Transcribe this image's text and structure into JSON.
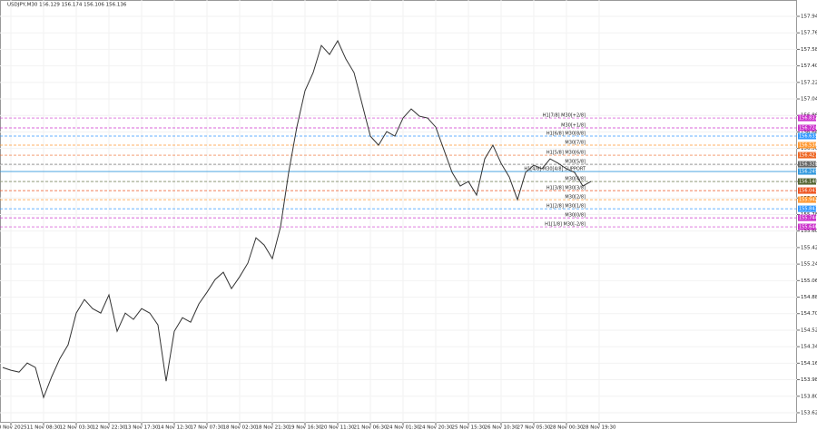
{
  "chart_data": {
    "type": "line",
    "title": "USDJPY,M30 156.129 156.174 156.106 156.136",
    "categories": [
      null,
      "10 Nov 2025",
      null,
      null,
      null,
      "11 Nov 08:30",
      null,
      null,
      null,
      "12 Nov 03:30",
      null,
      null,
      null,
      "12 Nov 22:30",
      null,
      null,
      null,
      "13 Nov 17:30",
      null,
      null,
      null,
      "14 Nov 12:30",
      null,
      null,
      null,
      "17 Nov 07:30",
      null,
      null,
      null,
      "18 Nov 02:30",
      null,
      null,
      null,
      "18 Nov 21:30",
      null,
      null,
      null,
      "19 Nov 16:30",
      null,
      null,
      null,
      "20 Nov 11:30",
      null,
      null,
      null,
      "21 Nov 06:30",
      null,
      null,
      null,
      "24 Nov 01:30",
      null,
      null,
      null,
      "24 Nov 20:30",
      null,
      null,
      null,
      "25 Nov 15:30",
      null,
      null,
      null,
      "26 Nov 10:30",
      null,
      null,
      null,
      "27 Nov 05:30",
      null,
      null,
      null,
      "28 Nov 00:30",
      null,
      null,
      null,
      "28 Nov 19:30"
    ],
    "series": [
      {
        "name": "USDJPY,M30",
        "color": "#333333",
        "values": [
          154.113,
          154.083,
          154.063,
          154.162,
          154.113,
          153.786,
          154.014,
          154.211,
          154.36,
          154.706,
          154.854,
          154.755,
          154.706,
          154.904,
          154.508,
          154.706,
          154.637,
          154.755,
          154.706,
          154.577,
          153.964,
          154.508,
          154.656,
          154.607,
          154.805,
          154.933,
          155.072,
          155.151,
          154.973,
          155.102,
          155.25,
          155.527,
          155.448,
          155.299,
          155.645,
          156.239,
          156.733,
          157.129,
          157.327,
          157.623,
          157.525,
          157.673,
          157.475,
          157.327,
          156.981,
          156.634,
          156.536,
          156.684,
          156.634,
          156.832,
          156.931,
          156.852,
          156.832,
          156.733,
          156.486,
          156.239,
          156.091,
          156.14,
          155.992,
          156.387,
          156.536,
          156.338,
          156.189,
          155.942,
          156.239,
          156.318,
          156.278,
          156.387,
          156.338,
          156.278,
          156.239,
          156.091,
          156.14,
          null
        ]
      }
    ],
    "ylim": [
      153.511,
      158.118
    ],
    "yticks": [
      {
        "value": 157.94,
        "label": "157.940"
      },
      {
        "value": 157.76,
        "label": "157.760"
      },
      {
        "value": 157.58,
        "label": "157.580"
      },
      {
        "value": 157.4,
        "label": "157.400"
      },
      {
        "value": 157.22,
        "label": "157.220"
      },
      {
        "value": 157.04,
        "label": "157.040"
      },
      {
        "value": 156.86,
        "label": "156.860"
      },
      {
        "value": 156.68,
        "label": "156.680"
      },
      {
        "value": 156.5,
        "label": "156.500"
      },
      {
        "value": 156.32,
        "label": "156.320"
      },
      {
        "value": 156.14,
        "label": "156.140"
      },
      {
        "value": 155.96,
        "label": "155.960"
      },
      {
        "value": 155.78,
        "label": "155.780"
      },
      {
        "value": 155.6,
        "label": "155.600"
      },
      {
        "value": 155.42,
        "label": "155.420"
      },
      {
        "value": 155.24,
        "label": "155.240"
      },
      {
        "value": 155.06,
        "label": "155.060"
      },
      {
        "value": 154.88,
        "label": "154.880"
      },
      {
        "value": 154.7,
        "label": "154.700"
      },
      {
        "value": 154.52,
        "label": "154.520"
      },
      {
        "value": 154.34,
        "label": "154.340"
      },
      {
        "value": 154.16,
        "label": "154.160"
      },
      {
        "value": 153.98,
        "label": "153.980"
      },
      {
        "value": 153.8,
        "label": "153.800"
      },
      {
        "value": 153.62,
        "label": "153.620"
      }
    ],
    "grid": true,
    "levels": [
      {
        "name": "H1[7/8] M30[+2/8]",
        "color": "#cc33cc",
        "dashed": true,
        "value": 156.832,
        "value_label": "156.832"
      },
      {
        "name": "M30[+1/8]",
        "color": "#cc33cc",
        "dashed": true,
        "value": 156.724,
        "value_label": "156.724"
      },
      {
        "name": "H1[6/8] M30[8/8]",
        "color": "#3399ff",
        "dashed": true,
        "value": 156.635,
        "value_label": "156.635"
      },
      {
        "name": "M30[7/8]",
        "color": "#ff9933",
        "dashed": true,
        "value": 156.536,
        "value_label": "156.536"
      },
      {
        "name": "H1[5/8] M30[6/8]",
        "color": "#ee6622",
        "dashed": true,
        "value": 156.427,
        "value_label": "156.427"
      },
      {
        "name": "M30[5/8]",
        "color": "#666666",
        "dashed": true,
        "value": 156.328,
        "value_label": "156.328"
      },
      {
        "name": "H1[4/8] M30[4/8] SUPPORT",
        "color": "#3399dd",
        "dashed": false,
        "value": 156.249,
        "value_label": "156.249"
      },
      {
        "name": "M30[4/8]",
        "color": "#556633",
        "dashed": true,
        "value": 156.14,
        "value_label": "156.140"
      },
      {
        "name": "H1[3/8] M30[3/8]",
        "color": "#ee5522",
        "dashed": true,
        "value": 156.041,
        "value_label": "156.041"
      },
      {
        "name": "M30[2/8]",
        "color": "#ff9933",
        "dashed": true,
        "value": 155.942,
        "value_label": "155.942"
      },
      {
        "name": "H1[2/8] M30[1/8]",
        "color": "#3399ff",
        "dashed": true,
        "value": 155.843,
        "value_label": "155.843"
      },
      {
        "name": "M30[0/8]",
        "color": "#cc33cc",
        "dashed": true,
        "value": 155.744,
        "value_label": "155.744"
      },
      {
        "name": "H1[1/8] M30[-2/8]",
        "color": "#cc33cc",
        "dashed": true,
        "value": 155.646,
        "value_label": "155.646"
      }
    ]
  }
}
